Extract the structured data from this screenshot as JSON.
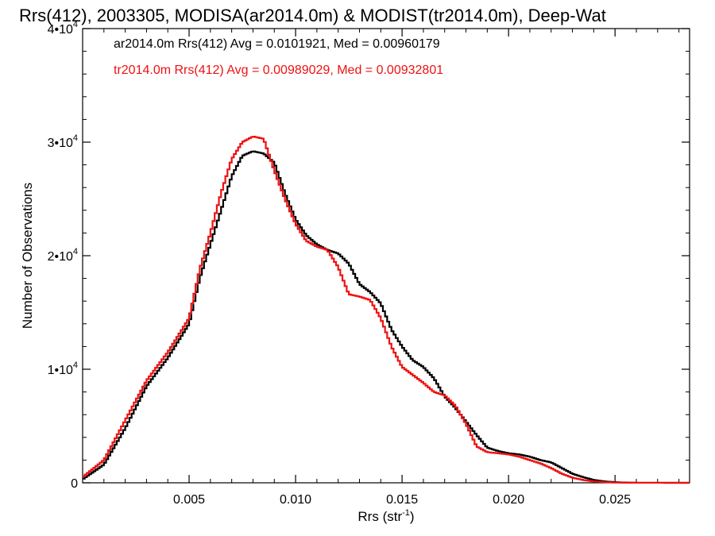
{
  "chart_data": {
    "type": "line",
    "title": "Rrs(412), 2003305, MODISA(ar2014.0m) & MODIST(tr2014.0m), Deep-Wat",
    "xlabel": "Rrs (str",
    "xlabel_sup": "-1",
    "xlabel_end": ")",
    "ylabel": "Number of Observations",
    "xlim": [
      0.0,
      0.0285
    ],
    "ylim": [
      0,
      40000
    ],
    "x_ticks": [
      {
        "value": 0.005,
        "label": "0.005"
      },
      {
        "value": 0.01,
        "label": "0.010"
      },
      {
        "value": 0.015,
        "label": "0.015"
      },
      {
        "value": 0.02,
        "label": "0.020"
      },
      {
        "value": 0.025,
        "label": "0.025"
      }
    ],
    "y_ticks": [
      {
        "value": 0,
        "label": "0",
        "sup": ""
      },
      {
        "value": 10000,
        "label": "1•10",
        "sup": "4"
      },
      {
        "value": 20000,
        "label": "2•10",
        "sup": "4"
      },
      {
        "value": 30000,
        "label": "3•10",
        "sup": "4"
      },
      {
        "value": 40000,
        "label": "4•10",
        "sup": "4"
      }
    ],
    "annotations": [
      {
        "text": "ar2014.0m Rrs(412) Avg = 0.0101921, Med = 0.00960179",
        "color": "#000000"
      },
      {
        "text": "tr2014.0m Rrs(412) Avg = 0.00989029, Med = 0.00932801",
        "color": "#ee1111"
      }
    ],
    "series": [
      {
        "color": "#000000",
        "x": [
          0.0,
          0.001,
          0.002,
          0.003,
          0.004,
          0.005,
          0.0055,
          0.006,
          0.0065,
          0.007,
          0.0075,
          0.008,
          0.0085,
          0.009,
          0.0095,
          0.01,
          0.0105,
          0.011,
          0.0115,
          0.012,
          0.0125,
          0.013,
          0.0135,
          0.014,
          0.0145,
          0.015,
          0.0155,
          0.016,
          0.0165,
          0.017,
          0.0175,
          0.018,
          0.0185,
          0.019,
          0.0195,
          0.02,
          0.0205,
          0.021,
          0.0215,
          0.022,
          0.0225,
          0.023,
          0.0235,
          0.024,
          0.0245,
          0.025,
          0.0255,
          0.026,
          0.0285
        ],
        "values": [
          300,
          1600,
          4800,
          8500,
          11000,
          14000,
          18000,
          21000,
          24000,
          27000,
          28800,
          29200,
          29000,
          28200,
          25500,
          23200,
          21800,
          21000,
          20500,
          20200,
          19300,
          17500,
          16800,
          15800,
          13500,
          12000,
          10800,
          10200,
          9200,
          7600,
          6600,
          5400,
          4200,
          3100,
          2800,
          2600,
          2500,
          2300,
          2000,
          1800,
          1300,
          800,
          500,
          250,
          120,
          60,
          20,
          5,
          0
        ]
      },
      {
        "color": "#ee1111",
        "x": [
          0.0,
          0.001,
          0.002,
          0.003,
          0.004,
          0.005,
          0.0055,
          0.006,
          0.0065,
          0.007,
          0.0075,
          0.008,
          0.0085,
          0.009,
          0.0095,
          0.01,
          0.0105,
          0.011,
          0.0115,
          0.012,
          0.0125,
          0.013,
          0.0135,
          0.014,
          0.0145,
          0.015,
          0.0155,
          0.016,
          0.0165,
          0.017,
          0.0175,
          0.018,
          0.0185,
          0.019,
          0.0195,
          0.02,
          0.0205,
          0.021,
          0.0215,
          0.022,
          0.0225,
          0.023,
          0.0235,
          0.024,
          0.0245,
          0.025,
          0.0255,
          0.026,
          0.0285
        ],
        "values": [
          500,
          2000,
          5500,
          9000,
          11500,
          14500,
          18800,
          22000,
          25500,
          28500,
          30000,
          30500,
          30300,
          27500,
          25000,
          22800,
          21300,
          20800,
          20500,
          19000,
          16600,
          16400,
          16100,
          14500,
          12000,
          10200,
          9500,
          8800,
          8000,
          7700,
          6800,
          5200,
          3200,
          2700,
          2600,
          2500,
          2300,
          2000,
          1700,
          1300,
          800,
          450,
          250,
          120,
          60,
          25,
          10,
          5,
          0
        ]
      }
    ]
  }
}
